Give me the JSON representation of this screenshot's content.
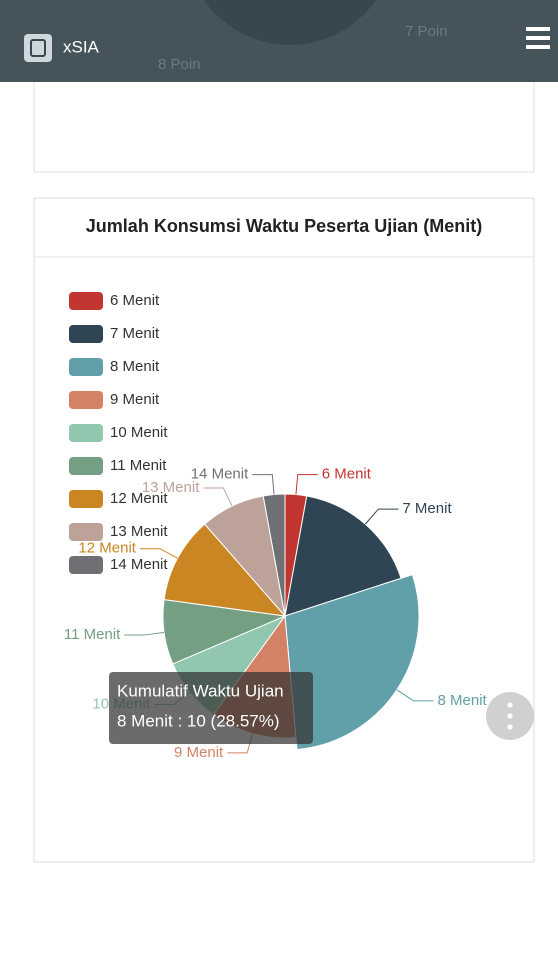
{
  "header": {
    "title": "xSIA",
    "background_labels": [
      "7 Poin",
      "8 Poin"
    ]
  },
  "card": {
    "title": "Jumlah Konsumsi Waktu Peserta Ujian (Menit)"
  },
  "chart_data": {
    "type": "pie",
    "categories": [
      "6 Menit",
      "7 Menit",
      "8 Menit",
      "9 Menit",
      "10 Menit",
      "11 Menit",
      "12 Menit",
      "13 Menit",
      "14 Menit"
    ],
    "values": [
      1,
      6,
      10,
      4,
      3,
      3,
      4,
      3,
      1
    ],
    "colors": [
      "#c23531",
      "#2f4554",
      "#61a0a8",
      "#d48265",
      "#91c7ae",
      "#749f83",
      "#ca8622",
      "#bda29a",
      "#6e7074"
    ],
    "legend": "top-left",
    "tooltip": {
      "title": "Kumulatif Waktu Ujian",
      "label": "8 Menit : 10 (28.57%)",
      "index": 2
    }
  }
}
